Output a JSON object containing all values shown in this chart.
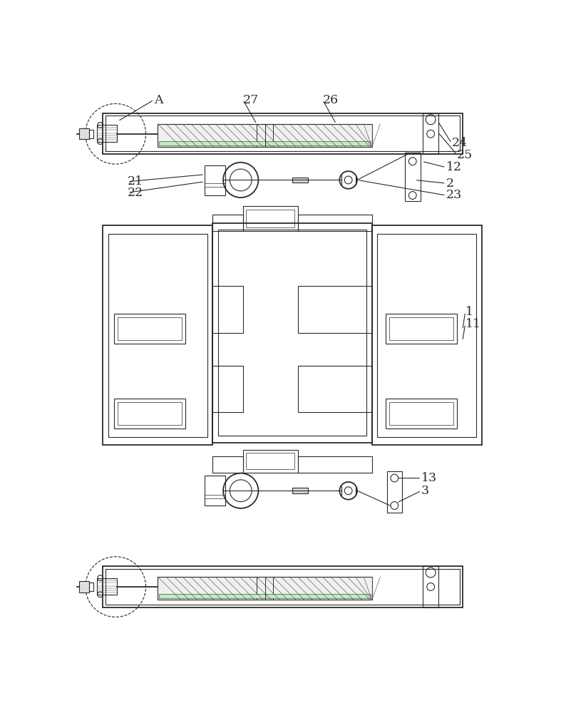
{
  "bg_color": "#ffffff",
  "line_color": "#2a2a2a",
  "fig_width": 8.01,
  "fig_height": 10.0,
  "lw_main": 1.3,
  "lw_thin": 0.8,
  "lw_xtra": 0.5
}
